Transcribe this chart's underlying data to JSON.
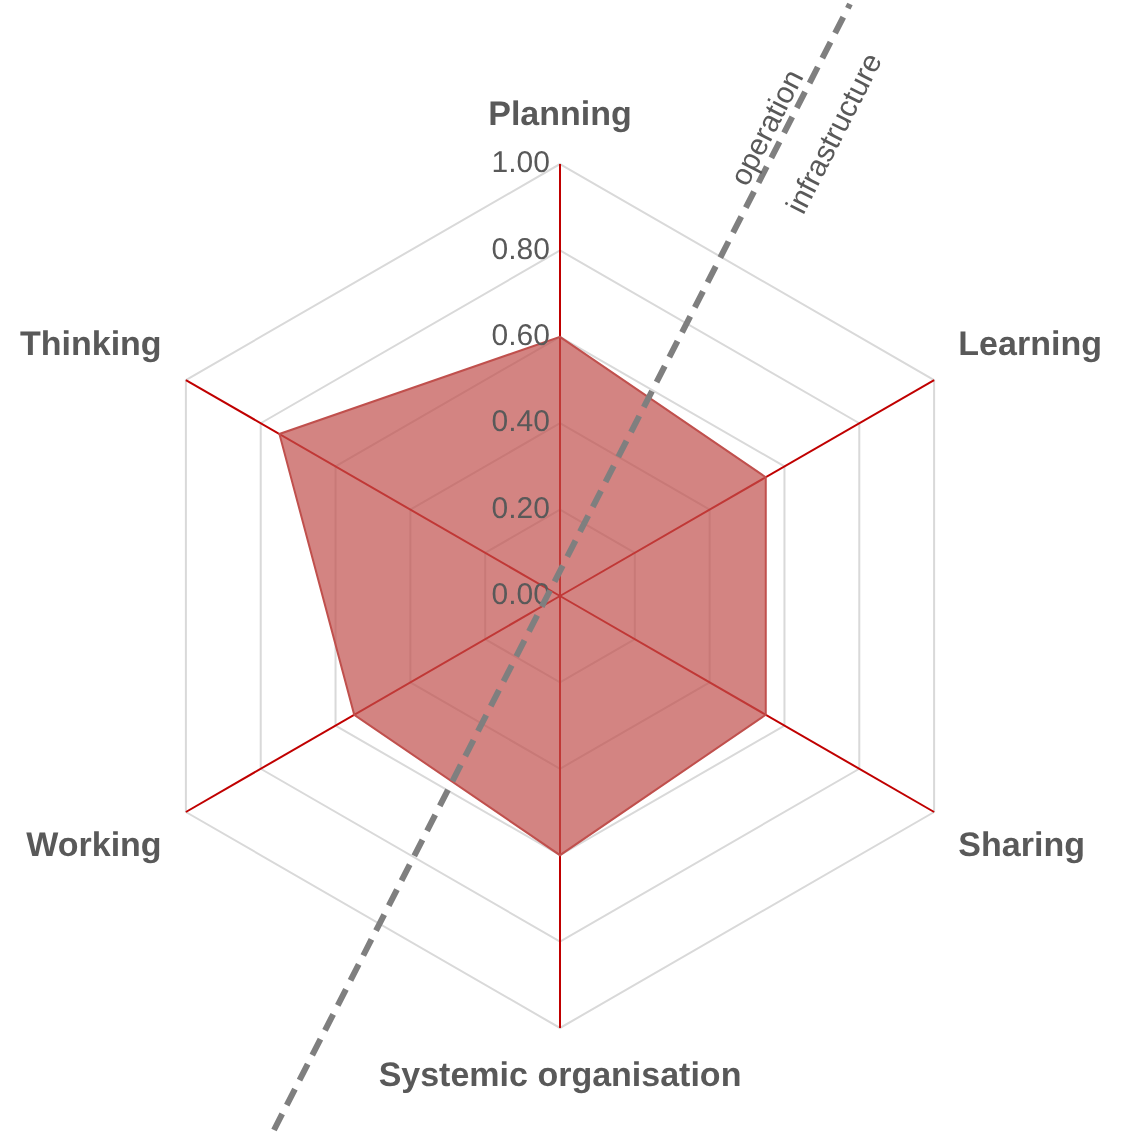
{
  "chart_data": {
    "type": "radar",
    "categories": [
      "Planning",
      "Learning",
      "Sharing",
      "Systemic organisation",
      "Working",
      "Thinking"
    ],
    "series": [
      {
        "color": "#c0504d",
        "values": [
          0.6,
          0.55,
          0.55,
          0.6,
          0.55,
          0.75
        ]
      }
    ],
    "ylim": [
      0,
      1
    ],
    "yticks": [
      {
        "value": 0,
        "label": "0.00"
      },
      {
        "value": 0.2,
        "label": "0.20"
      },
      {
        "value": 0.4,
        "label": "0.40"
      },
      {
        "value": 0.6,
        "label": "0.60"
      },
      {
        "value": 0.8,
        "label": "0.80"
      },
      {
        "value": 1,
        "label": "1.00"
      }
    ],
    "grid": true,
    "legend": false,
    "marker": "none",
    "annotations": [
      "operation",
      "infrastructure"
    ]
  }
}
